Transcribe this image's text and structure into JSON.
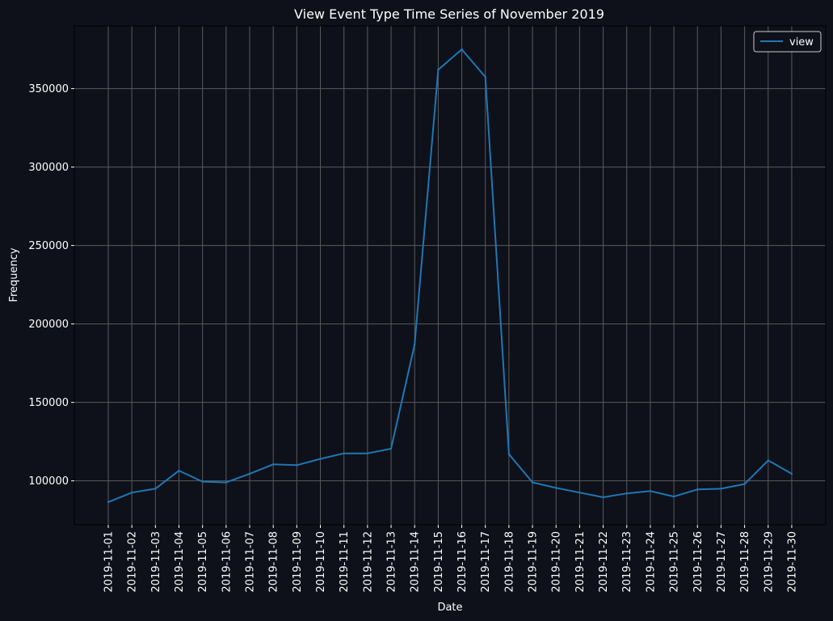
{
  "colors": {
    "background": "#0e111a",
    "plot_background": "#0e111a",
    "line": "#1f77b4",
    "text": "#ffffff",
    "grid": "#5a5a5a",
    "legend_border": "#cccccc"
  },
  "chart_data": {
    "type": "line",
    "title": "View Event Type Time Series of November 2019",
    "xlabel": "Date",
    "ylabel": "Frequency",
    "ylim": [
      72000,
      390000
    ],
    "yticks": [
      100000,
      150000,
      200000,
      250000,
      300000,
      350000
    ],
    "ytick_labels": [
      "100000",
      "150000",
      "200000",
      "250000",
      "300000",
      "350000"
    ],
    "grid": true,
    "legend_position": "top-right",
    "categories": [
      "2019-11-01",
      "2019-11-02",
      "2019-11-03",
      "2019-11-04",
      "2019-11-05",
      "2019-11-06",
      "2019-11-07",
      "2019-11-08",
      "2019-11-09",
      "2019-11-10",
      "2019-11-11",
      "2019-11-12",
      "2019-11-13",
      "2019-11-14",
      "2019-11-15",
      "2019-11-16",
      "2019-11-17",
      "2019-11-18",
      "2019-11-19",
      "2019-11-20",
      "2019-11-21",
      "2019-11-22",
      "2019-11-23",
      "2019-11-24",
      "2019-11-25",
      "2019-11-26",
      "2019-11-27",
      "2019-11-28",
      "2019-11-29",
      "2019-11-30"
    ],
    "series": [
      {
        "name": "view",
        "values": [
          86500,
          92500,
          95000,
          106500,
          99500,
          99000,
          104500,
          110500,
          110000,
          114000,
          117500,
          117500,
          120500,
          187000,
          362000,
          375000,
          357500,
          117000,
          99000,
          95500,
          92500,
          89500,
          92000,
          93500,
          90000,
          94500,
          95000,
          98000,
          113000,
          104500
        ]
      }
    ]
  }
}
